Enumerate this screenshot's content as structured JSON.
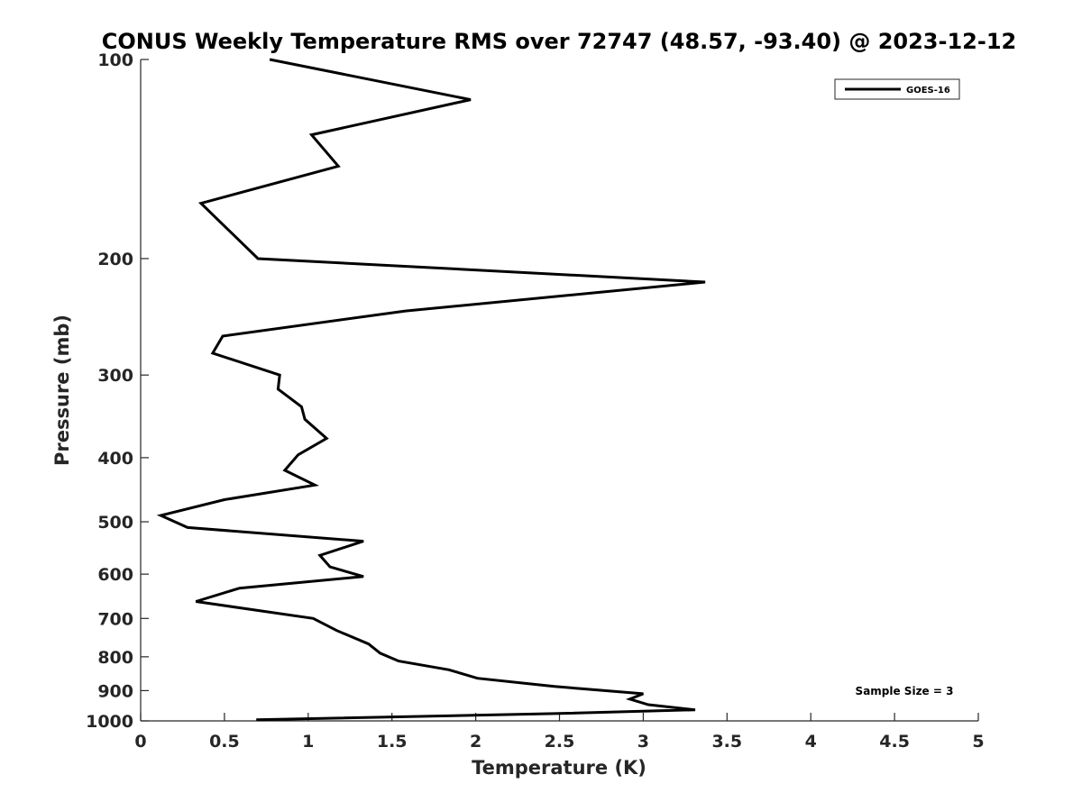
{
  "chart_data": {
    "type": "line",
    "title": "CONUS Weekly Temperature RMS over 72747 (48.57, -93.40) @ 2023-12-12",
    "xlabel": "Temperature (K)",
    "ylabel": "Pressure (mb)",
    "xlim": [
      0,
      5
    ],
    "ylim": [
      100,
      1000
    ],
    "y_scale": "log",
    "y_reversed": true,
    "x_ticks": [
      "0",
      "0.5",
      "1",
      "1.5",
      "2",
      "2.5",
      "3",
      "3.5",
      "4",
      "4.5",
      "5"
    ],
    "y_ticks": [
      "100",
      "200",
      "300",
      "400",
      "500",
      "600",
      "700",
      "800",
      "900",
      "1000"
    ],
    "grid": false,
    "legend_position": "top-right",
    "annotation": "Sample Size = 3",
    "line_color": "#000000",
    "series": [
      {
        "name": "GOES-16",
        "x": [
          0.77,
          1.97,
          1.02,
          1.18,
          0.36,
          0.7,
          3.37,
          1.58,
          0.49,
          0.43,
          0.83,
          0.82,
          0.96,
          0.98,
          1.11,
          0.94,
          0.86,
          1.04,
          0.5,
          0.12,
          0.28,
          1.33,
          1.07,
          1.13,
          1.33,
          0.59,
          0.33,
          1.03,
          1.17,
          1.36,
          1.43,
          1.54,
          1.84,
          2.01,
          2.47,
          3.0,
          2.92,
          3.03,
          3.31,
          2.47,
          0.69
        ],
        "y": [
          100,
          115,
          130,
          145,
          165,
          200,
          217,
          240,
          262,
          278,
          300,
          315,
          335,
          350,
          374,
          396,
          418,
          440,
          463,
          489,
          510,
          535,
          562,
          585,
          605,
          630,
          660,
          700,
          730,
          765,
          790,
          812,
          837,
          862,
          887,
          910,
          927,
          945,
          962,
          975,
          996
        ]
      }
    ]
  }
}
